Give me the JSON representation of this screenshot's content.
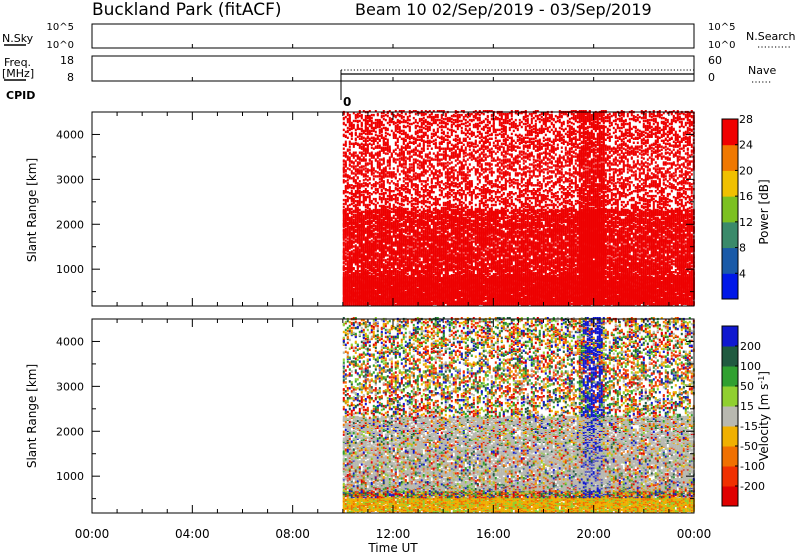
{
  "header": {
    "station": "Buckland Park (fitACF)",
    "beam_info": "Beam 10  02/Sep/2019 - 03/Sep/2019"
  },
  "noise_panel": {
    "left_label": "N.Sky",
    "right_label": "N.Search",
    "left_ticks": [
      "10^5",
      "10^0"
    ],
    "right_ticks": [
      "10^5",
      "10^0"
    ]
  },
  "freq_panel": {
    "left_label_1": "Freq.",
    "left_label_2": "[MHz]",
    "right_label": "Nave",
    "left_ticks": [
      "18",
      "8"
    ],
    "right_ticks": [
      "60",
      "0"
    ]
  },
  "cpid": {
    "label": "CPID",
    "value": "0"
  },
  "chart_data": [
    {
      "type": "heatmap",
      "title": "",
      "quantity": "Power",
      "ylabel": "Slant Range [km]",
      "yticks": [
        1000,
        2000,
        3000,
        4000
      ],
      "ylim": [
        180,
        4500
      ],
      "xlim_hours": [
        0,
        24
      ],
      "data_start_hour": 10,
      "colorbar": {
        "label": "Power [dB]",
        "ticks": [
          "4",
          "8",
          "12",
          "16",
          "20",
          "24",
          "28"
        ],
        "colors": [
          "#0018e8",
          "#1a5aa8",
          "#3a8a6a",
          "#7cc020",
          "#f0c000",
          "#f07800",
          "#f00000"
        ]
      },
      "dominant_color": "#ee0000"
    },
    {
      "type": "heatmap",
      "title": "",
      "quantity": "Velocity",
      "ylabel": "Slant Range [km]",
      "yticks": [
        1000,
        2000,
        3000,
        4000
      ],
      "ylim": [
        180,
        4500
      ],
      "xlim_hours": [
        0,
        24
      ],
      "data_start_hour": 10,
      "colorbar": {
        "label_main": "Velocity [m s",
        "label_exp": "-1",
        "label_end": "]",
        "ticks": [
          "200",
          "100",
          "50",
          "15",
          "-15",
          "-50",
          "-100",
          "-200"
        ],
        "colors": [
          "#1018d0",
          "#205a40",
          "#30a030",
          "#90d030",
          "#b8b8b0",
          "#f0b000",
          "#f07000",
          "#f03000",
          "#e00000"
        ]
      },
      "ground_scatter_color": "#b8b8b0"
    }
  ],
  "x_axis": {
    "tick_labels": [
      "00:00",
      "04:00",
      "08:00",
      "12:00",
      "16:00",
      "20:00",
      "00:00"
    ],
    "label": "Time UT"
  }
}
